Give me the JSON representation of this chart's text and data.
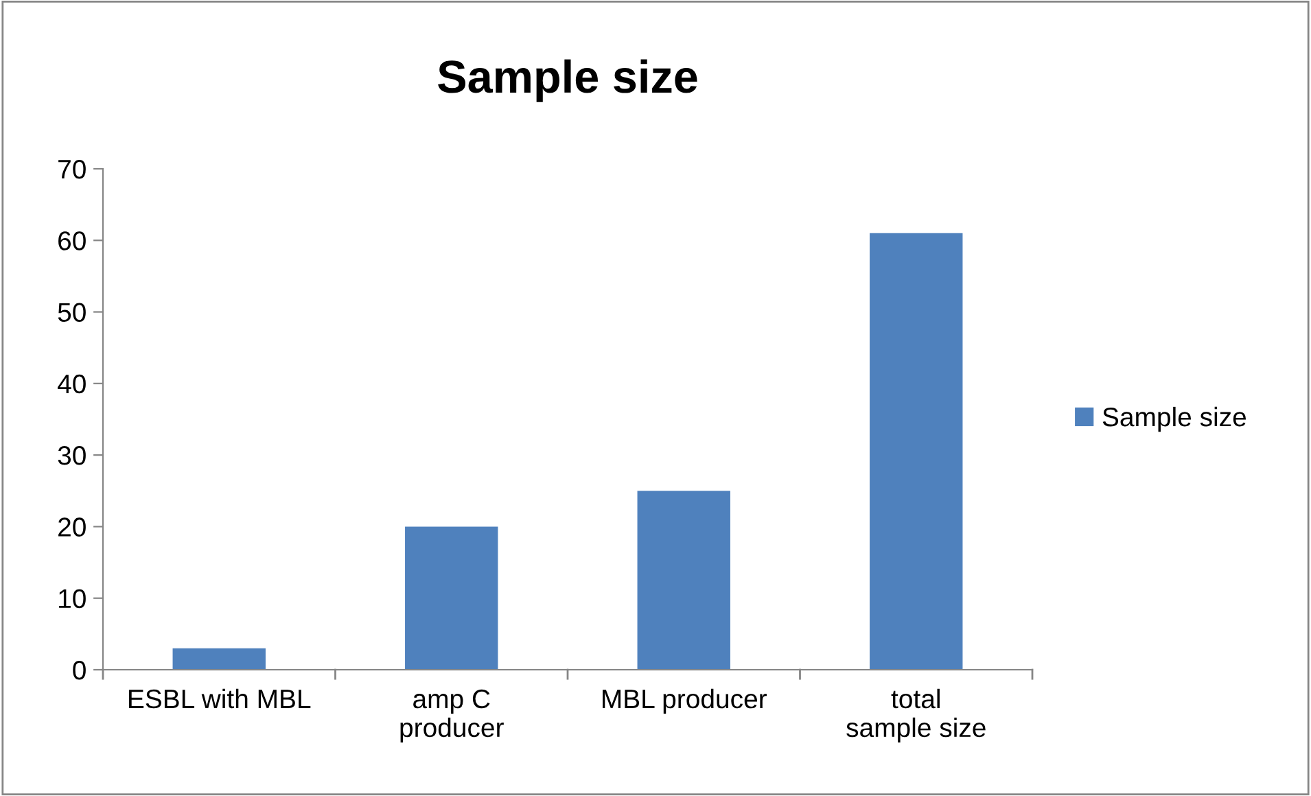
{
  "chart_data": {
    "type": "bar",
    "title": "Sample size",
    "categories": [
      "ESBL with MBL",
      "amp C producer",
      "MBL producer",
      "total sample size"
    ],
    "series": [
      {
        "name": "Sample size",
        "color": "#4f81bd",
        "values": [
          3,
          20,
          25,
          61
        ]
      }
    ],
    "ylim": [
      0,
      70
    ],
    "yticks": [
      0,
      10,
      20,
      30,
      40,
      50,
      60,
      70
    ],
    "grid": false,
    "legend": "right"
  }
}
